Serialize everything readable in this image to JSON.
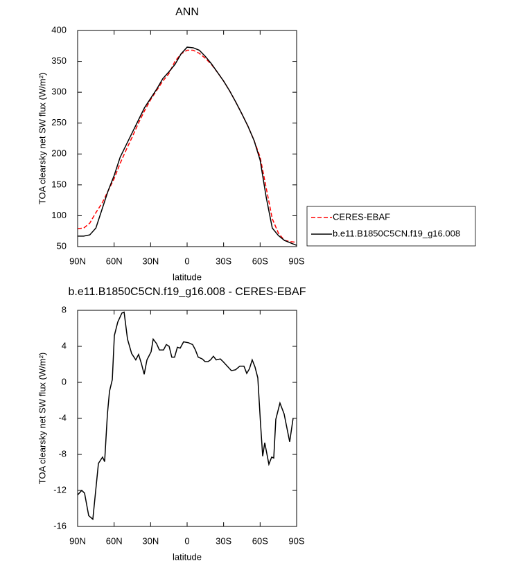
{
  "chart_data": [
    {
      "type": "line",
      "title": "ANN",
      "xlabel": "latitude",
      "ylabel": "TOA clearsky net SW flux (W/m²)",
      "x": [
        90,
        85,
        80,
        75,
        70,
        65,
        60,
        55,
        50,
        45,
        40,
        35,
        30,
        25,
        20,
        15,
        10,
        5,
        0,
        -5,
        -10,
        -15,
        -20,
        -25,
        -30,
        -35,
        -40,
        -45,
        -50,
        -55,
        -60,
        -65,
        -70,
        -75,
        -80,
        -85,
        -90
      ],
      "xlim": [
        90,
        -90
      ],
      "xticks": [
        {
          "value": 90,
          "label": "90N"
        },
        {
          "value": 60,
          "label": "60N"
        },
        {
          "value": 30,
          "label": "30N"
        },
        0,
        {
          "value": -30,
          "label": "30S"
        },
        {
          "value": -60,
          "label": "60S"
        },
        {
          "value": -90,
          "label": "90S"
        }
      ],
      "ylim": [
        50,
        400
      ],
      "yticks": [
        50,
        100,
        150,
        200,
        250,
        300,
        350,
        400
      ],
      "legend": "right",
      "series": [
        {
          "name": "CERES-EBAF",
          "color": "#ff0000",
          "dash": "dashed",
          "values": [
            79,
            80,
            88,
            105,
            120,
            140,
            160,
            185,
            207,
            228,
            250,
            270,
            288,
            303,
            318,
            330,
            350,
            362,
            368,
            368,
            363,
            355,
            345,
            332,
            318,
            302,
            284,
            265,
            245,
            222,
            195,
            145,
            95,
            72,
            60,
            58,
            57
          ]
        },
        {
          "name": "b.e11.B1850C5CN.f19_g16.008",
          "color": "#000000",
          "dash": "solid",
          "values": [
            67,
            67,
            69,
            80,
            110,
            140,
            165,
            195,
            215,
            235,
            255,
            275,
            290,
            305,
            322,
            333,
            345,
            362,
            373,
            372,
            368,
            358,
            346,
            332,
            318,
            302,
            284,
            265,
            245,
            222,
            190,
            130,
            80,
            68,
            60,
            56,
            52
          ]
        }
      ]
    },
    {
      "type": "line",
      "title": "b.e11.B1850C5CN.f19_g16.008 - CERES-EBAF",
      "xlabel": "latitude",
      "ylabel": "TOA clearsky net SW flux (W/m²)",
      "x": [
        90,
        86.6,
        84.3,
        80.9,
        77.5,
        72.9,
        69.5,
        67.8,
        65.5,
        63.8,
        61.5,
        59.8,
        57,
        53.6,
        51.8,
        49,
        45.6,
        42.2,
        39.9,
        37.6,
        35.3,
        33,
        29.6,
        27.9,
        25.1,
        22.8,
        19.4,
        17.1,
        14.8,
        12.6,
        10.3,
        8,
        5.7,
        2.9,
        -1.1,
        -4.5,
        -6.8,
        -9.1,
        -12.5,
        -14.8,
        -17.1,
        -19.3,
        -21.6,
        -23.9,
        -27.3,
        -29.6,
        -33,
        -36.4,
        -39.8,
        -43.3,
        -46.7,
        -49,
        -51.2,
        -53.5,
        -55.8,
        -58.1,
        -60.3,
        -62.1,
        -63.8,
        -67.2,
        -69.5,
        -71.2,
        -72.9,
        -76.3,
        -79.7,
        -84.3,
        -87.1
      ],
      "values": [
        -12.5,
        -12,
        -12.3,
        -14.8,
        -15.2,
        -9,
        -8.3,
        -8.8,
        -3.5,
        -1,
        0.3,
        5.2,
        6.7,
        7.7,
        7.8,
        4.8,
        3.2,
        2.5,
        3.1,
        2.1,
        0.9,
        2.5,
        3.4,
        4.8,
        4.3,
        3.6,
        3.6,
        4.2,
        4,
        2.8,
        2.8,
        3.9,
        3.8,
        4.5,
        4.4,
        4.2,
        3.6,
        2.8,
        2.6,
        2.3,
        2.3,
        2.5,
        2.9,
        2.5,
        2.6,
        2.3,
        1.8,
        1.3,
        1.4,
        1.8,
        1.8,
        1,
        1.5,
        2.5,
        1.7,
        0.5,
        -4.5,
        -8.2,
        -6.7,
        -9.1,
        -8.3,
        -8.4,
        -4.1,
        -2.3,
        -3.5,
        -6.6,
        -4
      ],
      "color": "#000000",
      "xlim": [
        90,
        -90
      ],
      "xticks": [
        {
          "value": 90,
          "label": "90N"
        },
        {
          "value": 60,
          "label": "60N"
        },
        {
          "value": 30,
          "label": "30N"
        },
        0,
        {
          "value": -30,
          "label": "30S"
        },
        {
          "value": -60,
          "label": "60S"
        },
        {
          "value": -90,
          "label": "90S"
        }
      ],
      "ylim": [
        -16,
        8
      ],
      "yticks": [
        -16,
        -12,
        -8,
        -4,
        0,
        4,
        8
      ]
    }
  ]
}
